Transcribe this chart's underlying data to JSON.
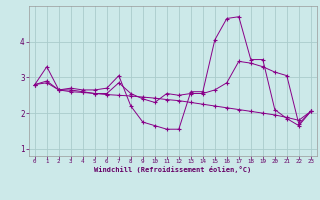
{
  "xlabel": "Windchill (Refroidissement éolien,°C)",
  "background_color": "#cce9e9",
  "line_color": "#880088",
  "grid_color": "#aacccc",
  "xlim": [
    -0.5,
    23.5
  ],
  "ylim": [
    0.8,
    5.0
  ],
  "yticks": [
    1,
    2,
    3,
    4
  ],
  "xticks": [
    0,
    1,
    2,
    3,
    4,
    5,
    6,
    7,
    8,
    9,
    10,
    11,
    12,
    13,
    14,
    15,
    16,
    17,
    18,
    19,
    20,
    21,
    22,
    23
  ],
  "series": [
    {
      "x": [
        0,
        1,
        2,
        3,
        4,
        5,
        6,
        7,
        8,
        9,
        10,
        11,
        12,
        13,
        14,
        15,
        16,
        17,
        18,
        19,
        20,
        21,
        22,
        23
      ],
      "y": [
        2.8,
        3.3,
        2.65,
        2.7,
        2.65,
        2.65,
        2.7,
        3.05,
        2.2,
        1.75,
        1.65,
        1.55,
        1.55,
        2.6,
        2.6,
        4.05,
        4.65,
        4.7,
        3.5,
        3.5,
        2.1,
        1.85,
        1.65,
        2.05
      ]
    },
    {
      "x": [
        0,
        1,
        2,
        3,
        4,
        5,
        6,
        7,
        8,
        9,
        10,
        11,
        12,
        13,
        14,
        15,
        16,
        17,
        18,
        19,
        20,
        21,
        22,
        23
      ],
      "y": [
        2.8,
        2.9,
        2.65,
        2.65,
        2.6,
        2.55,
        2.55,
        2.85,
        2.55,
        2.4,
        2.3,
        2.55,
        2.5,
        2.55,
        2.55,
        2.65,
        2.85,
        3.45,
        3.4,
        3.3,
        3.15,
        3.05,
        1.7,
        2.05
      ]
    },
    {
      "x": [
        0,
        1,
        2,
        3,
        4,
        5,
        6,
        7,
        8,
        9,
        10,
        11,
        12,
        13,
        14,
        15,
        16,
        17,
        18,
        19,
        20,
        21,
        22,
        23
      ],
      "y": [
        2.8,
        2.85,
        2.65,
        2.6,
        2.58,
        2.55,
        2.52,
        2.5,
        2.48,
        2.45,
        2.42,
        2.38,
        2.35,
        2.3,
        2.25,
        2.2,
        2.15,
        2.1,
        2.05,
        2.0,
        1.95,
        1.88,
        1.8,
        2.05
      ]
    }
  ]
}
